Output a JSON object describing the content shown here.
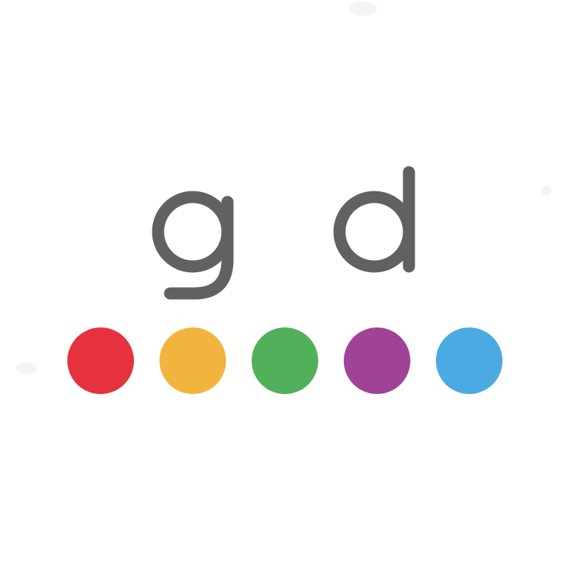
{
  "logo": {
    "letters": [
      "g",
      "d"
    ],
    "letter_color": "#616161",
    "dots": [
      {
        "name": "red",
        "color": "#E5323E"
      },
      {
        "name": "yellow",
        "color": "#F2B43F"
      },
      {
        "name": "green",
        "color": "#52B05A"
      },
      {
        "name": "purple",
        "color": "#A04397"
      },
      {
        "name": "blue",
        "color": "#4CAAE2"
      }
    ]
  },
  "background_color": "#FFFFFF"
}
